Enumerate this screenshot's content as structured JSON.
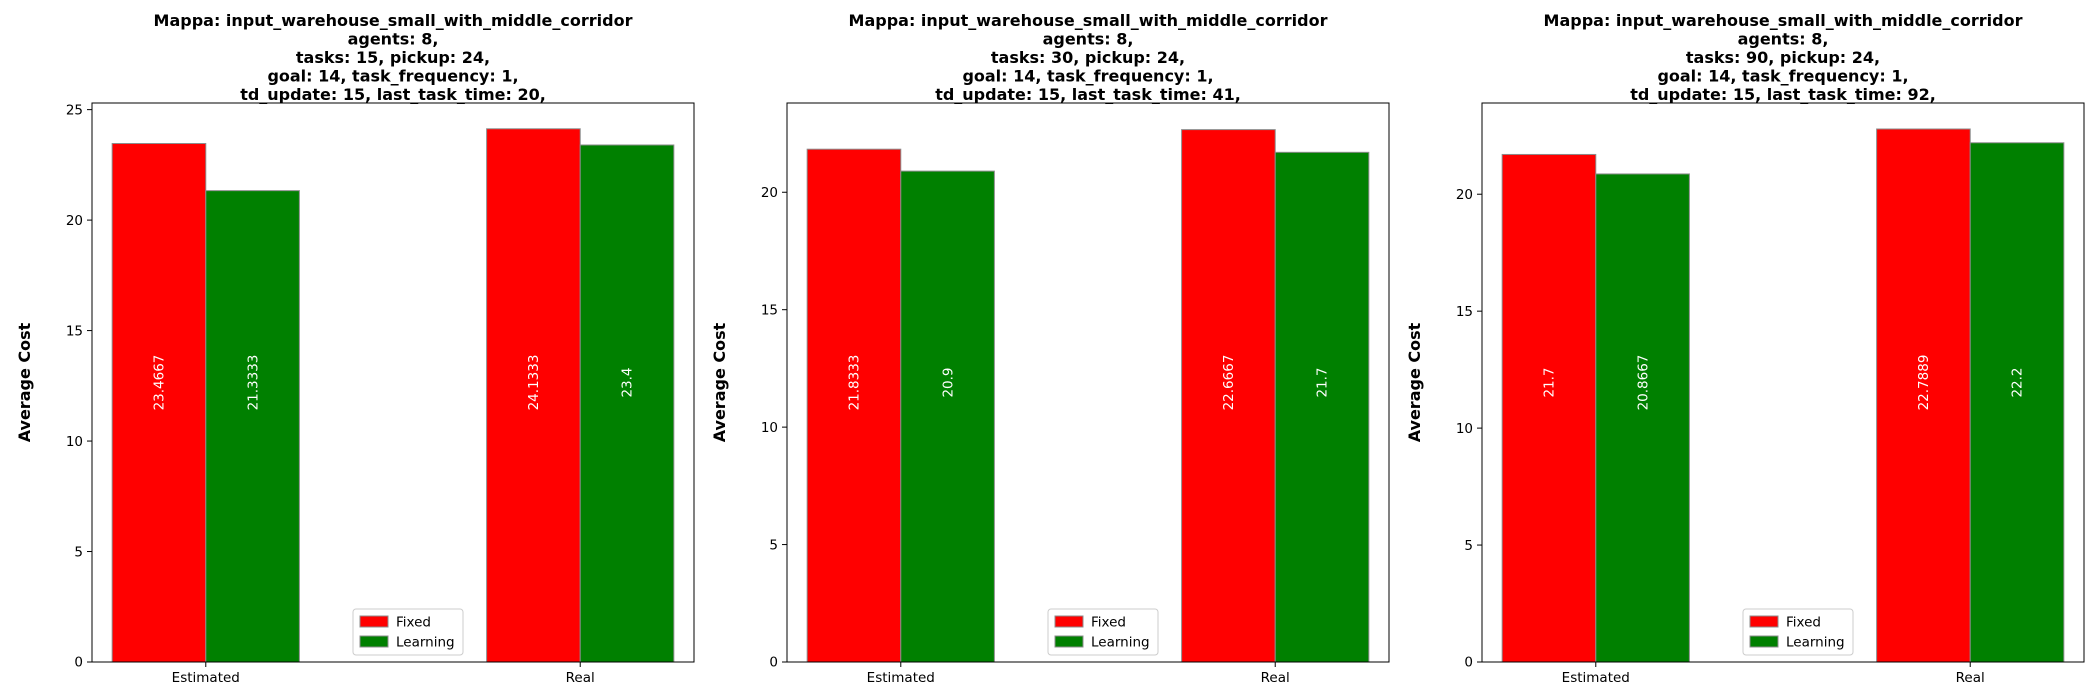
{
  "chart_data": [
    {
      "type": "bar",
      "title_lines": [
        "Mappa: input_warehouse_small_with_middle_corridor",
        "agents: 8,",
        "tasks: 15, pickup: 24,",
        "goal: 14, task_frequency: 1,",
        "td_update: 15, last_task_time: 20,"
      ],
      "categories": [
        "Estimated",
        "Real"
      ],
      "series": [
        {
          "name": "Fixed",
          "color": "#ff0000",
          "values": [
            23.4667,
            24.1333
          ],
          "labels": [
            "23.4667",
            "24.1333"
          ]
        },
        {
          "name": "Learning",
          "color": "#008000",
          "values": [
            21.3333,
            23.4
          ],
          "labels": [
            "21.3333",
            "23.4"
          ]
        }
      ],
      "ylabel": "Average Cost",
      "ylim": [
        0,
        25.3
      ],
      "yticks": [
        0,
        5,
        10,
        15,
        20,
        25
      ],
      "legend": "bottom-center"
    },
    {
      "type": "bar",
      "title_lines": [
        "Mappa: input_warehouse_small_with_middle_corridor",
        "agents: 8,",
        "tasks: 30, pickup: 24,",
        "goal: 14, task_frequency: 1,",
        "td_update: 15, last_task_time: 41,"
      ],
      "categories": [
        "Estimated",
        "Real"
      ],
      "series": [
        {
          "name": "Fixed",
          "color": "#ff0000",
          "values": [
            21.8333,
            22.6667
          ],
          "labels": [
            "21.8333",
            "22.6667"
          ]
        },
        {
          "name": "Learning",
          "color": "#008000",
          "values": [
            20.9,
            21.7
          ],
          "labels": [
            "20.9",
            "21.7"
          ]
        }
      ],
      "ylabel": "Average Cost",
      "ylim": [
        0,
        23.8
      ],
      "yticks": [
        0,
        5,
        10,
        15,
        20
      ],
      "legend": "bottom-center"
    },
    {
      "type": "bar",
      "title_lines": [
        "Mappa: input_warehouse_small_with_middle_corridor",
        "agents: 8,",
        "tasks: 90, pickup: 24,",
        "goal: 14, task_frequency: 1,",
        "td_update: 15, last_task_time: 92,"
      ],
      "categories": [
        "Estimated",
        "Real"
      ],
      "series": [
        {
          "name": "Fixed",
          "color": "#ff0000",
          "values": [
            21.7,
            22.7889
          ],
          "labels": [
            "21.7",
            "22.7889"
          ]
        },
        {
          "name": "Learning",
          "color": "#008000",
          "values": [
            20.8667,
            22.2
          ],
          "labels": [
            "20.8667",
            "22.2"
          ]
        }
      ],
      "ylabel": "Average Cost",
      "ylim": [
        0,
        23.9
      ],
      "yticks": [
        0,
        5,
        10,
        15,
        20
      ],
      "legend": "bottom-center"
    }
  ]
}
